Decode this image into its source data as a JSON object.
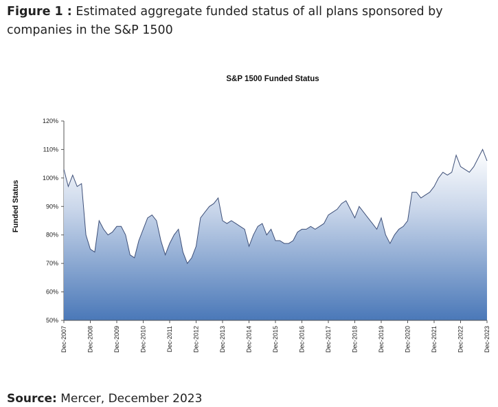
{
  "caption": {
    "label": "Figure 1 :",
    "text": "Estimated aggregate funded status of all plans sponsored by companies in the S&P 1500"
  },
  "source": {
    "label": "Source:",
    "text": "Mercer, December 2023"
  },
  "chart_data": {
    "type": "area",
    "title": "S&P 1500 Funded Status",
    "y_label": "Funded Status",
    "categories": [
      "Dec-2007",
      null,
      null,
      null,
      null,
      null,
      "Dec-2008",
      null,
      null,
      null,
      null,
      null,
      "Dec-2009",
      null,
      null,
      null,
      null,
      null,
      "Dec-2010",
      null,
      null,
      null,
      null,
      null,
      "Dec-2011",
      null,
      null,
      null,
      null,
      null,
      "Dec-2012",
      null,
      null,
      null,
      null,
      null,
      "Dec-2013",
      null,
      null,
      null,
      null,
      null,
      "Dec-2014",
      null,
      null,
      null,
      null,
      null,
      "Dec-2015",
      null,
      null,
      null,
      null,
      null,
      "Dec-2016",
      null,
      null,
      null,
      null,
      null,
      "Dec-2017",
      null,
      null,
      null,
      null,
      null,
      "Dec-2018",
      null,
      null,
      null,
      null,
      null,
      "Dec-2019",
      null,
      null,
      null,
      null,
      null,
      "Dec-2020",
      null,
      null,
      null,
      null,
      null,
      "Dec-2021",
      null,
      null,
      null,
      null,
      null,
      "Dec-2022",
      null,
      null,
      null,
      null,
      null,
      "Dec-2023"
    ],
    "values": [
      103,
      97,
      101,
      97,
      98,
      80,
      75,
      74,
      85,
      82,
      80,
      81,
      83,
      83,
      80,
      73,
      72,
      78,
      82,
      86,
      87,
      85,
      78,
      73,
      77,
      80,
      82,
      74,
      70,
      72,
      76,
      86,
      88,
      90,
      91,
      93,
      85,
      84,
      85,
      84,
      83,
      82,
      76,
      80,
      83,
      84,
      80,
      82,
      78,
      78,
      77,
      77,
      78,
      81,
      82,
      82,
      83,
      82,
      83,
      84,
      87,
      88,
      89,
      91,
      92,
      89,
      86,
      90,
      88,
      86,
      84,
      82,
      86,
      80,
      77,
      80,
      82,
      83,
      85,
      95,
      95,
      93,
      94,
      95,
      97,
      100,
      102,
      101,
      102,
      108,
      104,
      103,
      102,
      104,
      107,
      110,
      106
    ],
    "color": "#4a78b8",
    "line_color": "#3d4f78",
    "ylim": [
      50,
      120
    ],
    "yticks": [
      {
        "value": 50,
        "label": "50%"
      },
      {
        "value": 60,
        "label": "60%"
      },
      {
        "value": 70,
        "label": "70%"
      },
      {
        "value": 80,
        "label": "80%"
      },
      {
        "value": 90,
        "label": "90%"
      },
      {
        "value": 100,
        "label": "100%"
      },
      {
        "value": 110,
        "label": "110%"
      },
      {
        "value": 120,
        "label": "120%"
      }
    ]
  }
}
